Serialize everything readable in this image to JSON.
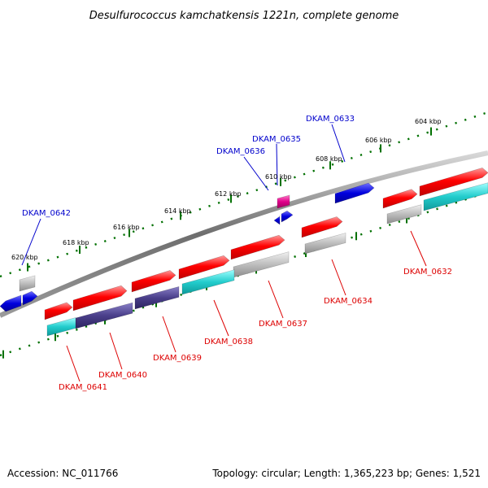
{
  "header": {
    "title": "Desulfurococcus kamchatkensis 1221n, complete genome"
  },
  "footer": {
    "accession": "Accession: NC_011766",
    "summary": "Topology: circular; Length: 1,365,223 bp; Genes: 1,521"
  },
  "scale_labels": [
    "604 kbp",
    "606 kbp",
    "608 kbp",
    "610 kbp",
    "612 kbp",
    "614 kbp",
    "616 kbp",
    "618 kbp",
    "620 kbp"
  ],
  "genes_top": [
    "DKAM_0633",
    "DKAM_0635",
    "DKAM_0636",
    "DKAM_0642"
  ],
  "genes_bottom": [
    "DKAM_0632",
    "DKAM_0634",
    "DKAM_0637",
    "DKAM_0638",
    "DKAM_0639",
    "DKAM_0640",
    "DKAM_0641"
  ],
  "colors": {
    "cds": "#ff0000",
    "gene_gray": "#b4b4b4",
    "cyan": "#20c8c8",
    "dark_purple": "#4a3f8a",
    "blue": "#0000dd",
    "magenta": "#e0008a",
    "dots": "#007000",
    "backbone": "#707070",
    "top_label": "#0000cc",
    "bottom_label": "#dd0000"
  }
}
